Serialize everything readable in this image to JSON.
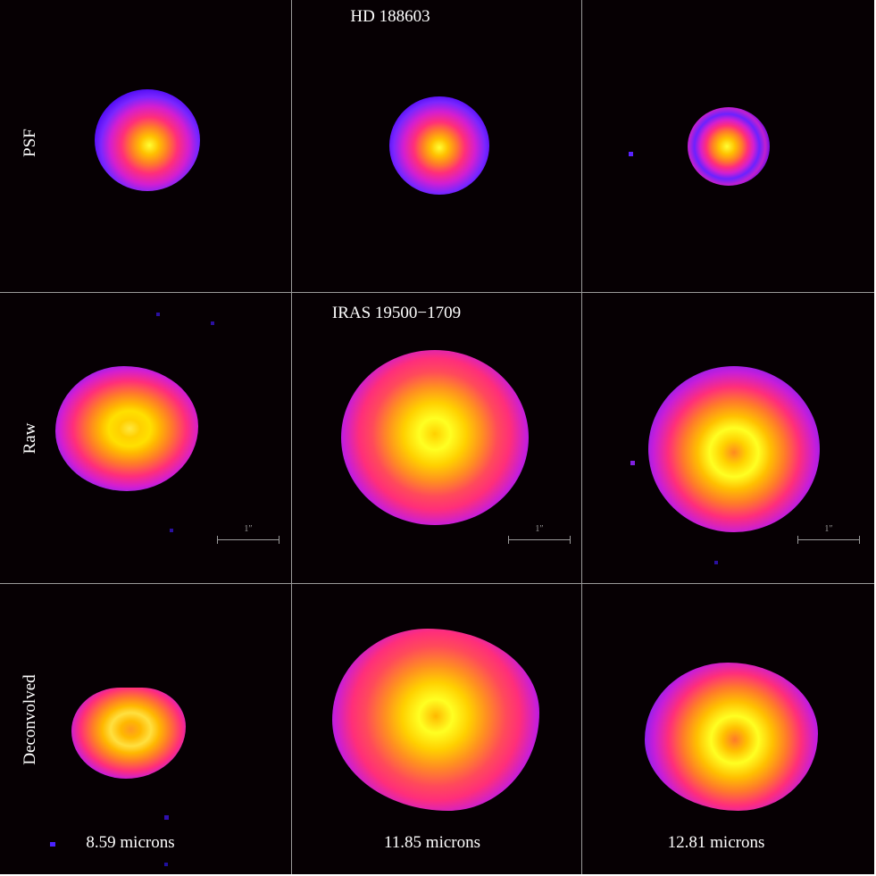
{
  "figure": {
    "top_title": "HD 188603",
    "middle_title": "IRAS 19500−1709",
    "row_labels": [
      "PSF",
      "Raw",
      "Deconvolved"
    ],
    "wavelength_labels": [
      "8.59 microns",
      "11.85 microns",
      "12.81 microns"
    ],
    "scalebar_label": "1″"
  },
  "colors": {
    "background": "#060003",
    "grid_line": "#9a9a9a",
    "colormap": [
      "#ffff22",
      "#ffb800",
      "#ff6a2a",
      "#ff2f7a",
      "#cf1ecf",
      "#6a22ff",
      "#2a00ee"
    ]
  }
}
